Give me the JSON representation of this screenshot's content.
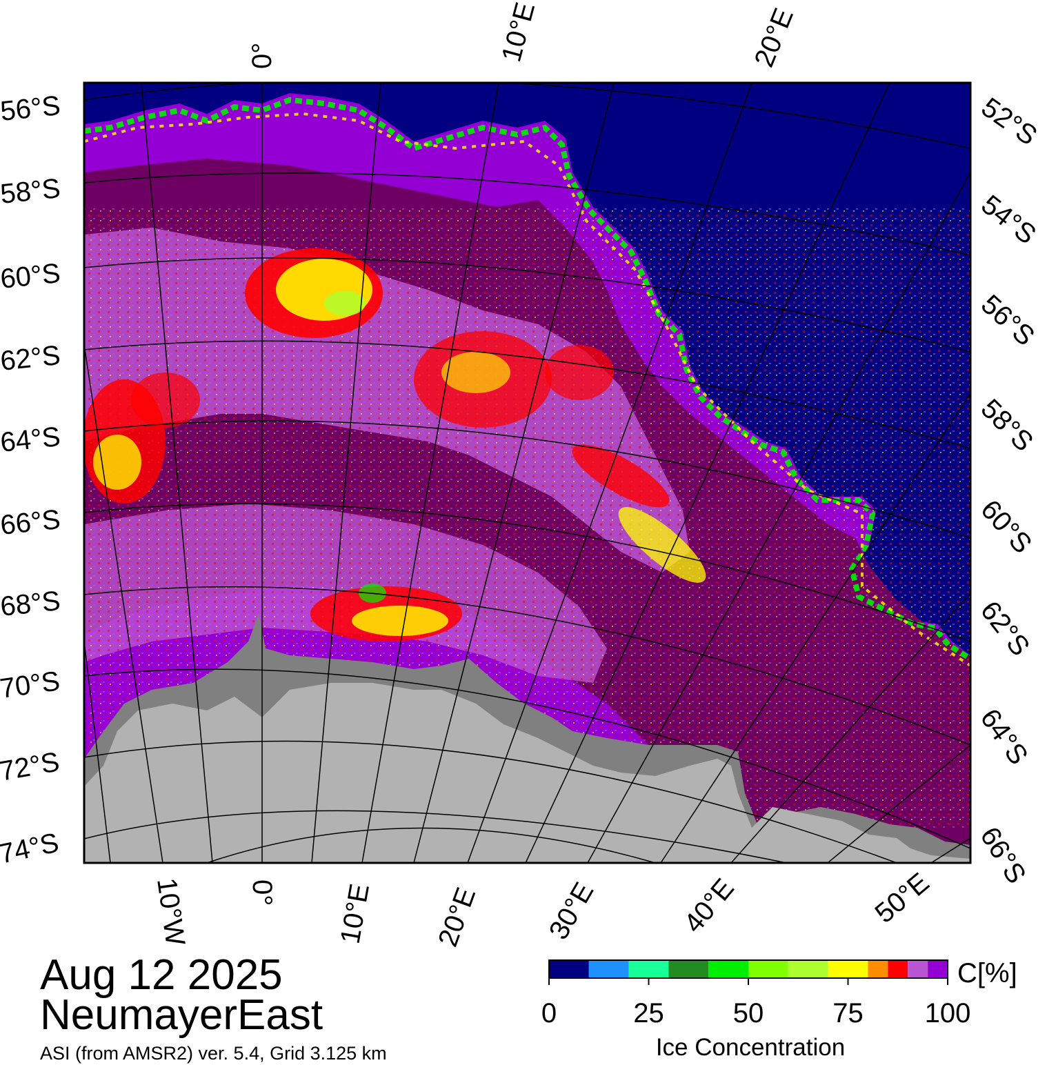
{
  "title": {
    "date": "Aug 12 2025",
    "region": "NeumayerEast",
    "source": "ASI (from AMSR2) ver. 5.4,  Grid 3.125 km"
  },
  "map": {
    "ocean_color": "#000080",
    "land_color": "#b2b2b2",
    "ice_shelf_color": "#808080",
    "grid_color": "#000000",
    "top_labels": [
      "0°",
      "10°E",
      "20°E"
    ],
    "bottom_labels": [
      "10°W",
      "0°",
      "10°E",
      "20°E",
      "30°E",
      "40°E",
      "50°E"
    ],
    "left_labels": [
      "56°S",
      "58°S",
      "60°S",
      "62°S",
      "64°S",
      "66°S",
      "68°S",
      "70°S",
      "72°S",
      "74°S"
    ],
    "right_labels": [
      "52°S",
      "54°S",
      "56°S",
      "58°S",
      "60°S",
      "62°S",
      "64°S",
      "66°S"
    ]
  },
  "colorbar": {
    "title": "Ice Concentration",
    "unit": "C[%]",
    "ticks": [
      "0",
      "25",
      "50",
      "75",
      "100"
    ],
    "colors": [
      "#000080",
      "#1e90ff",
      "#19ff9a",
      "#228b22",
      "#00ee00",
      "#7fff00",
      "#adff2f",
      "#ffff00",
      "#ff8c00",
      "#ff0000",
      "#ba55d3",
      "#9400d3"
    ],
    "bounds": [
      0,
      10,
      20,
      30,
      40,
      50,
      60,
      70,
      80,
      85,
      90,
      95,
      100
    ]
  }
}
